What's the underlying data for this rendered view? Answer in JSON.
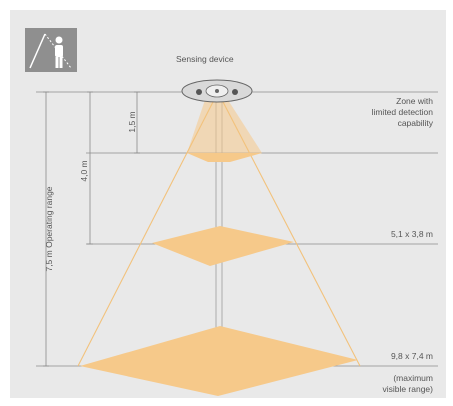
{
  "device_label": "Sensing device",
  "zones": {
    "limited": {
      "line1": "Zone with",
      "line2": "limited detection",
      "line3": "capability"
    },
    "mid": "5,1 x 3,8 m",
    "max": {
      "size": "9,8 x 7,4 m",
      "line1": "(maximum",
      "line2": "visible range)"
    }
  },
  "dimensions": {
    "first": "1,5 m",
    "second": "4,0 m",
    "operating": "7,5 m Operating range"
  },
  "colors": {
    "panel": "#e9e9e9",
    "zone_fill": "#f6c98a",
    "cone_line": "#f2c27c",
    "dim_line": "#8a8a8a",
    "badge": "#8f8f8f"
  },
  "icons": [
    "sensor-person-icon",
    "sensing-device-icon"
  ]
}
